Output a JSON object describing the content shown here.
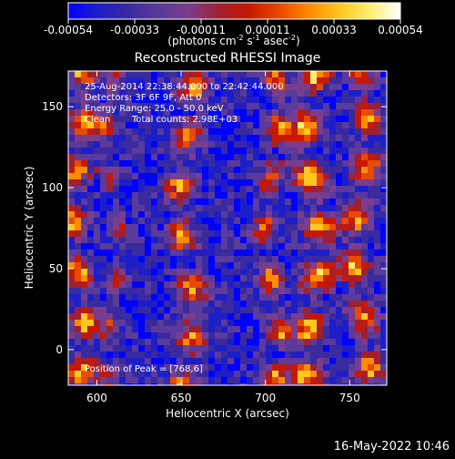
{
  "chart_data": {
    "type": "heatmap",
    "title": "Reconstructed RHESSI Image",
    "xlabel": "Heliocentric X (arcsec)",
    "ylabel": "Heliocentric Y (arcsec)",
    "xlim": [
      583,
      772
    ],
    "ylim": [
      -22,
      172
    ],
    "x_ticks": [
      600,
      650,
      700,
      750
    ],
    "y_ticks": [
      0,
      50,
      100,
      150
    ],
    "colorbar": {
      "range": [
        -0.00054,
        0.00054
      ],
      "ticks": [
        "-0.00054",
        "-0.00033",
        "-0.00011",
        "0.00011",
        "0.00033",
        "0.00054"
      ],
      "units_text": "(photons cm",
      "units_exp1": "-2",
      "units_mid": " s",
      "units_exp2": "-1",
      "units_mid2": " asec",
      "units_exp3": "-2",
      "units_close": ")",
      "palette": [
        "#0000ff",
        "#1e1ec8",
        "#3a2aa0",
        "#5a3a9a",
        "#7a3d8c",
        "#a02030",
        "#c81800",
        "#e84a00",
        "#ff8c00",
        "#ffc820",
        "#ffee70",
        "#ffffff"
      ]
    },
    "annotations": {
      "time_range": "25-Aug-2014 22:38:44.000 to 22:42:44.000",
      "detectors": "Detectors: 3F 6F 9F, Att 0",
      "energy_range": "Energy Range: 25.0 - 50.0 keV",
      "clean": "Clean",
      "total_counts": "Total counts: 2.98E+03",
      "peak": "Position of Peak = [768,6]"
    }
  },
  "footer": {
    "timestamp": "16-May-2022 10:46"
  }
}
